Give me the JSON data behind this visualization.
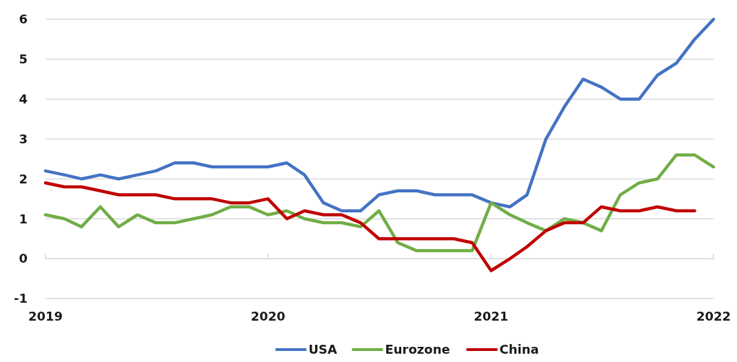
{
  "chart_data": {
    "type": "line",
    "x": [
      "2019-01",
      "2019-02",
      "2019-03",
      "2019-04",
      "2019-05",
      "2019-06",
      "2019-07",
      "2019-08",
      "2019-09",
      "2019-10",
      "2019-11",
      "2019-12",
      "2020-01",
      "2020-02",
      "2020-03",
      "2020-04",
      "2020-05",
      "2020-06",
      "2020-07",
      "2020-08",
      "2020-09",
      "2020-10",
      "2020-11",
      "2020-12",
      "2021-01",
      "2021-02",
      "2021-03",
      "2021-04",
      "2021-05",
      "2021-06",
      "2021-07",
      "2021-08",
      "2021-09",
      "2021-10",
      "2021-11",
      "2021-12",
      "2022-01"
    ],
    "series": [
      {
        "name": "USA",
        "color": "#4472c4",
        "values": [
          2.2,
          2.1,
          2.0,
          2.1,
          2.0,
          2.1,
          2.2,
          2.4,
          2.4,
          2.3,
          2.3,
          2.3,
          2.3,
          2.4,
          2.1,
          1.4,
          1.2,
          1.2,
          1.6,
          1.7,
          1.7,
          1.6,
          1.6,
          1.6,
          1.4,
          1.3,
          1.6,
          3.0,
          3.8,
          4.5,
          4.3,
          4.0,
          4.0,
          4.6,
          4.9,
          5.5,
          6.0
        ]
      },
      {
        "name": "Eurozone",
        "color": "#70ad47",
        "values": [
          1.1,
          1.0,
          0.8,
          1.3,
          0.8,
          1.1,
          0.9,
          0.9,
          1.0,
          1.1,
          1.3,
          1.3,
          1.1,
          1.2,
          1.0,
          0.9,
          0.9,
          0.8,
          1.2,
          0.4,
          0.2,
          0.2,
          0.2,
          0.2,
          1.4,
          1.1,
          0.9,
          0.7,
          1.0,
          0.9,
          0.7,
          1.6,
          1.9,
          2.0,
          2.6,
          2.6,
          2.3
        ]
      },
      {
        "name": "China",
        "color": "#c00000",
        "values": [
          1.9,
          1.8,
          1.8,
          1.7,
          1.6,
          1.6,
          1.6,
          1.5,
          1.5,
          1.5,
          1.4,
          1.4,
          1.5,
          1.0,
          1.2,
          1.1,
          1.1,
          0.9,
          0.5,
          0.5,
          0.5,
          0.5,
          0.5,
          0.4,
          -0.3,
          0.0,
          0.3,
          0.7,
          0.9,
          0.9,
          1.3,
          1.2,
          1.2,
          1.3,
          1.2,
          1.2,
          null
        ]
      }
    ],
    "xlim": [
      "2019-01",
      "2022-01"
    ],
    "xticks": [
      {
        "value": "2019-01",
        "label": "2019"
      },
      {
        "value": "2020-01",
        "label": "2020"
      },
      {
        "value": "2021-01",
        "label": "2021"
      },
      {
        "value": "2022-01",
        "label": "2022"
      }
    ],
    "ylim": [
      -1,
      6
    ],
    "yticks": [
      -1,
      0,
      1,
      2,
      3,
      4,
      5,
      6
    ],
    "grid": "y",
    "legend": "bottom",
    "marker": "none",
    "line_style": "solid"
  }
}
